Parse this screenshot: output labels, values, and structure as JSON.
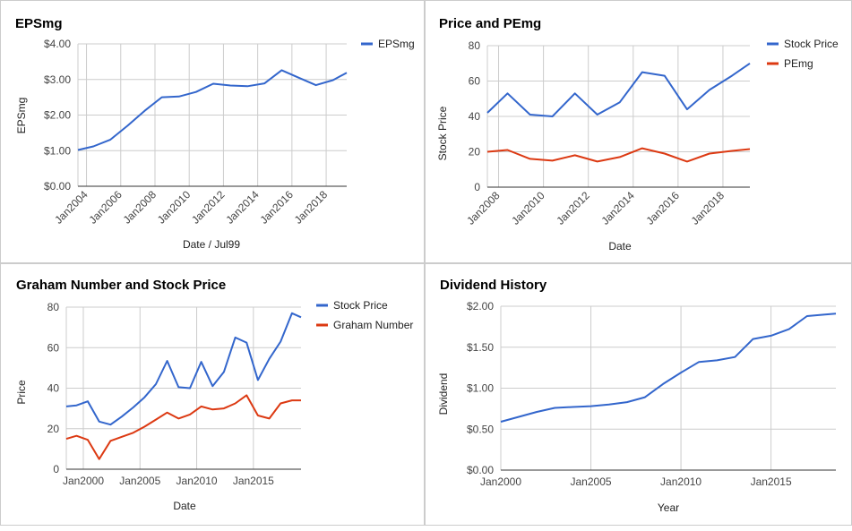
{
  "colors": {
    "blue": "#3366cc",
    "red": "#dc3912",
    "grid": "#cccccc",
    "axis": "#333333"
  },
  "chart_data": [
    {
      "type": "line",
      "title": "EPSmg",
      "xlabel": "Date / Jul99",
      "ylabel": "EPSmg",
      "x_ticks": [
        "Jan2004",
        "Jan2006",
        "Jan2008",
        "Jan2010",
        "Jan2012",
        "Jan2014",
        "Jan2016",
        "Jan2018"
      ],
      "y_ticks": [
        "$0.00",
        "$1.00",
        "$2.00",
        "$3.00",
        "$4.00"
      ],
      "xlim": [
        2003.5,
        2019.2
      ],
      "ylim": [
        0,
        4
      ],
      "grid": true,
      "legend": "right",
      "series": [
        {
          "name": "EPSmg",
          "color": "blue",
          "x": [
            2003.5,
            2004.4,
            2005.4,
            2006.4,
            2007.4,
            2008.4,
            2009.4,
            2010.4,
            2011.4,
            2012.4,
            2013.4,
            2014.4,
            2015.4,
            2016.4,
            2017.4,
            2018.4,
            2019.2
          ],
          "y": [
            1.02,
            1.12,
            1.31,
            1.7,
            2.12,
            2.5,
            2.52,
            2.65,
            2.88,
            2.83,
            2.81,
            2.89,
            3.26,
            3.05,
            2.84,
            2.98,
            3.19
          ]
        }
      ]
    },
    {
      "type": "line",
      "title": "Price and PEmg",
      "xlabel": "Date",
      "ylabel": "Stock Price",
      "x_ticks": [
        "Jan2008",
        "Jan2010",
        "Jan2012",
        "Jan2014",
        "Jan2016",
        "Jan2018"
      ],
      "y_ticks": [
        "0",
        "20",
        "40",
        "60",
        "80"
      ],
      "xlim": [
        2007.5,
        2019.2
      ],
      "ylim": [
        0,
        80
      ],
      "grid": true,
      "legend": "right",
      "series": [
        {
          "name": "Stock Price",
          "color": "blue",
          "x": [
            2007.5,
            2008.4,
            2009.4,
            2010.4,
            2011.4,
            2012.4,
            2013.4,
            2014.4,
            2015.4,
            2016.4,
            2017.4,
            2018.4,
            2019.2
          ],
          "y": [
            42,
            53,
            41,
            40,
            53,
            41,
            48,
            65,
            63,
            44,
            55,
            63,
            70
          ]
        },
        {
          "name": "PEmg",
          "color": "red",
          "x": [
            2007.5,
            2008.4,
            2009.4,
            2010.4,
            2011.4,
            2012.4,
            2013.4,
            2014.4,
            2015.4,
            2016.4,
            2017.4,
            2018.4,
            2019.2
          ],
          "y": [
            20,
            21,
            16,
            15,
            18,
            14.5,
            17,
            22,
            19,
            14.5,
            19,
            20.5,
            21.5
          ]
        }
      ]
    },
    {
      "type": "line",
      "title": "Graham Number and Stock Price",
      "xlabel": "Date",
      "ylabel": "Price",
      "x_ticks": [
        "Jan2000",
        "Jan2005",
        "Jan2010",
        "Jan2015"
      ],
      "y_ticks": [
        "0",
        "20",
        "40",
        "60",
        "80"
      ],
      "xlim": [
        1998.5,
        2019.2
      ],
      "ylim": [
        0,
        80
      ],
      "grid": true,
      "legend": "right",
      "series": [
        {
          "name": "Stock Price",
          "color": "blue",
          "x": [
            1998.5,
            1999.4,
            2000.4,
            2001.4,
            2002.4,
            2003.4,
            2004.4,
            2005.4,
            2006.4,
            2007.4,
            2008.4,
            2009.4,
            2010.4,
            2011.4,
            2012.4,
            2013.4,
            2014.4,
            2015.4,
            2016.4,
            2017.4,
            2018.4,
            2019.2
          ],
          "y": [
            31,
            31.5,
            33.5,
            23.5,
            22,
            26,
            30.5,
            35.5,
            42,
            53.5,
            40.5,
            40,
            53,
            41,
            48,
            65,
            62.5,
            44,
            54.5,
            63,
            77,
            75
          ]
        },
        {
          "name": "Graham Number",
          "color": "red",
          "x": [
            1998.5,
            1999.4,
            2000.4,
            2001.4,
            2002.4,
            2003.4,
            2004.4,
            2005.4,
            2006.4,
            2007.4,
            2008.4,
            2009.4,
            2010.4,
            2011.4,
            2012.4,
            2013.4,
            2014.4,
            2015.4,
            2016.4,
            2017.4,
            2018.4,
            2019.2
          ],
          "y": [
            15,
            16.5,
            14.5,
            5,
            14,
            16,
            18,
            21,
            24.5,
            28,
            25,
            27,
            31,
            29.5,
            30,
            32.5,
            36.5,
            26.5,
            25,
            32.5,
            34,
            34
          ]
        }
      ]
    },
    {
      "type": "line",
      "title": "Dividend History",
      "xlabel": "Year",
      "ylabel": "Dividend",
      "x_ticks": [
        "Jan2000",
        "Jan2005",
        "Jan2010",
        "Jan2015"
      ],
      "y_ticks": [
        "$0.00",
        "$0.50",
        "$1.00",
        "$1.50",
        "$2.00"
      ],
      "xlim": [
        2000,
        2018.6
      ],
      "ylim": [
        0,
        2
      ],
      "grid": true,
      "legend": "none",
      "series": [
        {
          "name": "",
          "color": "blue",
          "x": [
            2000,
            2001,
            2002,
            2003,
            2004,
            2005,
            2006,
            2007,
            2008,
            2009,
            2010,
            2011,
            2012,
            2013,
            2014,
            2015,
            2016,
            2017,
            2018,
            2018.6
          ],
          "y": [
            0.59,
            0.65,
            0.71,
            0.76,
            0.77,
            0.78,
            0.8,
            0.83,
            0.89,
            1.05,
            1.19,
            1.32,
            1.34,
            1.38,
            1.6,
            1.64,
            1.72,
            1.88,
            1.9,
            1.91
          ]
        }
      ]
    }
  ]
}
